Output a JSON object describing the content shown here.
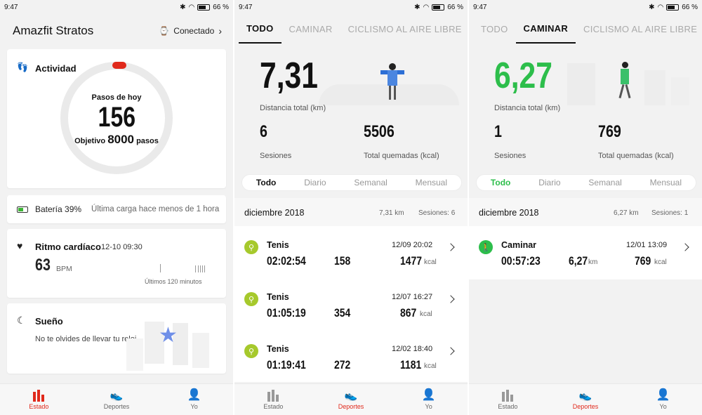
{
  "status": {
    "time": "9:47",
    "battery": "66 %"
  },
  "s1": {
    "title": "Amazfit Stratos",
    "connected": "Conectado",
    "activity": {
      "title": "Actividad",
      "today_label": "Pasos de hoy",
      "steps": "156",
      "goal_prefix": "Objetivo",
      "goal": "8000",
      "goal_suffix": "pasos"
    },
    "battery": {
      "label": "Batería 39%",
      "last_charge": "Última carga hace menos de 1 hora"
    },
    "heart": {
      "title": "Ritmo cardíaco",
      "time": "12-10 09:30",
      "value": "63",
      "unit": "BPM",
      "footer": "Últimos 120 minutos"
    },
    "sleep": {
      "title": "Sueño",
      "message": "No te olvides de llevar tu reloj"
    }
  },
  "nav": {
    "estado": "Estado",
    "deportes": "Deportes",
    "yo": "Yo"
  },
  "tabs": [
    "TODO",
    "CAMINAR",
    "CICLISMO AL AIRE LIBRE"
  ],
  "s2": {
    "distance": "7,31",
    "distance_label": "Distancia total (km)",
    "sessions": "6",
    "sessions_label": "Sesiones",
    "burned": "5506",
    "burned_label": "Total quemadas (kcal)",
    "seg": [
      "Todo",
      "Diario",
      "Semanal",
      "Mensual"
    ],
    "month": "diciembre 2018",
    "month_km": "7,31 km",
    "month_sessions": "Sesiones: 6",
    "items": [
      {
        "name": "Tenis",
        "date": "12/09  20:02",
        "duration": "02:02:54",
        "v1": "158",
        "v2": "1477",
        "unit2": "kcal"
      },
      {
        "name": "Tenis",
        "date": "12/07  16:27",
        "duration": "01:05:19",
        "v1": "354",
        "v2": "867",
        "unit2": "kcal"
      },
      {
        "name": "Tenis",
        "date": "12/02  18:40",
        "duration": "01:19:41",
        "v1": "272",
        "v2": "1181",
        "unit2": "kcal"
      }
    ]
  },
  "s3": {
    "distance": "6,27",
    "distance_label": "Distancia total (km)",
    "sessions": "1",
    "sessions_label": "Sesiones",
    "burned": "769",
    "burned_label": "Total quemadas (kcal)",
    "seg": [
      "Todo",
      "Diario",
      "Semanal",
      "Mensual"
    ],
    "month": "diciembre 2018",
    "month_km": "6,27 km",
    "month_sessions": "Sesiones: 1",
    "items": [
      {
        "name": "Caminar",
        "date": "12/01  13:09",
        "duration": "00:57:23",
        "v1": "6,27",
        "unit1": "km",
        "v2": "769",
        "unit2": "kcal"
      }
    ]
  },
  "colors": {
    "accent_red": "#e0291b",
    "green": "#2dbe4b",
    "tennis": "#a6c92c"
  }
}
